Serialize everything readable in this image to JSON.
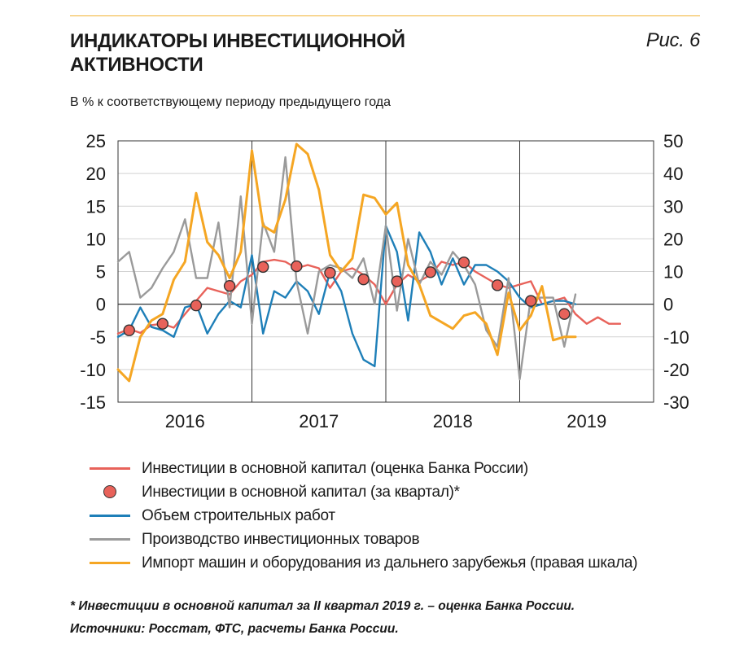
{
  "header": {
    "title": "ИНДИКАТОРЫ ИНВЕСТИЦИОННОЙ АКТИВНОСТИ",
    "figure_label": "Рис. 6",
    "subtitle": "В % к соответствующему периоду предыдущего года"
  },
  "chart_data": {
    "type": "line",
    "title": "ИНДИКАТОРЫ ИНВЕСТИЦИОННОЙ АКТИВНОСТИ",
    "subtitle": "В % к соответствующему периоду предыдущего года",
    "x_labels": [
      "2016",
      "2017",
      "2018",
      "2019"
    ],
    "xlim": [
      0,
      48
    ],
    "ylim_left": [
      -15,
      25
    ],
    "ylim_right": [
      -30,
      50
    ],
    "y_ticks_left": [
      25,
      20,
      15,
      10,
      5,
      0,
      -5,
      -10,
      -15
    ],
    "y_ticks_right": [
      50,
      40,
      30,
      20,
      10,
      0,
      -10,
      -20,
      -30
    ],
    "grid": "horizontal and year dividers",
    "legend_position": "bottom",
    "series": [
      {
        "name": "Инвестиции в основной капитал (оценка Банка России)",
        "axis": "left",
        "color": "#e8625a",
        "marker": "none",
        "x": [
          0,
          1,
          2,
          3,
          4,
          5,
          6,
          7,
          8,
          9,
          10,
          11,
          12,
          13,
          14,
          15,
          16,
          17,
          18,
          19,
          20,
          21,
          22,
          23,
          24,
          25,
          26,
          27,
          28,
          29,
          30,
          31,
          32,
          33,
          34,
          35,
          36,
          37,
          38,
          39,
          40,
          41,
          42,
          43,
          44,
          45
        ],
        "y": [
          -4.5,
          -3.8,
          -4.4,
          -3.2,
          -3.0,
          -3.6,
          -1.5,
          0.5,
          2.5,
          2.0,
          1.5,
          3.5,
          4.5,
          6.5,
          6.8,
          6.5,
          5.5,
          6.0,
          5.5,
          2.5,
          5.0,
          5.5,
          4.5,
          3.0,
          0.0,
          3.0,
          4.5,
          3.5,
          4.5,
          6.5,
          6.0,
          6.5,
          5.0,
          4.0,
          3.0,
          2.5,
          3.0,
          3.5,
          0.0,
          0.5,
          1.0,
          -1.5,
          -3.0,
          -2.0,
          -3.0,
          -3.0
        ]
      },
      {
        "name": "Инвестиции в основной капитал (за квартал)*",
        "axis": "left",
        "color": "#e8625a",
        "marker": "circle",
        "x": [
          1,
          4,
          7,
          10,
          13,
          16,
          19,
          22,
          25,
          28,
          31,
          34,
          37,
          40
        ],
        "y": [
          -4.0,
          -3.0,
          -0.2,
          2.8,
          5.7,
          5.8,
          4.8,
          3.8,
          3.5,
          4.9,
          6.4,
          2.9,
          0.5,
          -1.5
        ]
      },
      {
        "name": "Объем строительных работ",
        "axis": "left",
        "color": "#1e7fb8",
        "marker": "none",
        "x": [
          0,
          1,
          2,
          3,
          4,
          5,
          6,
          7,
          8,
          9,
          10,
          11,
          12,
          13,
          14,
          15,
          16,
          17,
          18,
          19,
          20,
          21,
          22,
          23,
          24,
          25,
          26,
          27,
          28,
          29,
          30,
          31,
          32,
          33,
          34,
          35,
          36,
          37,
          38,
          39,
          40,
          41
        ],
        "y": [
          -5.0,
          -4.0,
          -0.5,
          -3.5,
          -4.0,
          -5.0,
          -0.5,
          0.0,
          -4.5,
          -1.5,
          0.5,
          -0.5,
          7.5,
          -4.5,
          2.0,
          1.0,
          3.5,
          2.0,
          -1.5,
          5.0,
          2.0,
          -4.5,
          -8.5,
          -9.5,
          12.0,
          8.0,
          -2.5,
          11.0,
          8.0,
          3.0,
          7.0,
          3.0,
          6.0,
          6.0,
          5.0,
          3.5,
          1.0,
          -0.5,
          0.0,
          0.5,
          0.5,
          0.0
        ]
      },
      {
        "name": "Производство инвестиционных товаров",
        "axis": "left",
        "color": "#9a9a9a",
        "marker": "none",
        "x": [
          0,
          1,
          2,
          3,
          4,
          5,
          6,
          7,
          8,
          9,
          10,
          11,
          12,
          13,
          14,
          15,
          16,
          17,
          18,
          19,
          20,
          21,
          22,
          23,
          24,
          25,
          26,
          27,
          28,
          29,
          30,
          31,
          32,
          33,
          34,
          35,
          36,
          37,
          38,
          39,
          40,
          41
        ],
        "y": [
          6.5,
          8.0,
          1.0,
          2.5,
          5.5,
          8.0,
          13.0,
          4.0,
          4.0,
          12.5,
          -0.5,
          16.5,
          -3.0,
          12.5,
          8.0,
          22.5,
          3.5,
          -4.5,
          5.0,
          6.0,
          5.5,
          4.0,
          7.0,
          0.0,
          12.0,
          -1.0,
          10.0,
          3.0,
          6.5,
          4.5,
          8.0,
          6.0,
          3.0,
          -4.0,
          -6.5,
          4.0,
          -11.5,
          1.0,
          1.0,
          1.0,
          -6.5,
          1.5
        ]
      },
      {
        "name": "Импорт машин и оборудования из дальнего зарубежья (правая шкала)",
        "axis": "right",
        "color": "#f5a623",
        "marker": "none",
        "x": [
          0,
          1,
          2,
          3,
          4,
          5,
          6,
          7,
          8,
          9,
          10,
          11,
          12,
          13,
          14,
          15,
          16,
          17,
          18,
          19,
          20,
          21,
          22,
          23,
          24,
          25,
          26,
          27,
          28,
          29,
          30,
          31,
          32,
          33,
          34,
          35,
          36,
          37,
          38,
          39,
          40,
          41
        ],
        "y": [
          -20.0,
          -23.5,
          -10.0,
          -5.0,
          -3.0,
          7.5,
          13.0,
          34.0,
          19.0,
          15.0,
          8.0,
          16.0,
          47.0,
          24.0,
          22.0,
          32.0,
          49.0,
          46.0,
          35.0,
          15.0,
          10.0,
          14.0,
          33.5,
          32.5,
          27.5,
          31.0,
          12.0,
          6.0,
          -3.5,
          -5.5,
          -7.5,
          -3.5,
          -2.5,
          -6.0,
          -15.5,
          3.5,
          -8.0,
          -3.5,
          5.5,
          -11.0,
          -10.0,
          -10.0
        ]
      }
    ]
  },
  "legend": {
    "items": [
      "Инвестиции в основной капитал (оценка Банка России)",
      "Инвестиции в основной капитал (за квартал)*",
      "Объем строительных работ",
      "Производство инвестиционных товаров",
      "Импорт машин и оборудования из дальнего зарубежья (правая шкала)"
    ]
  },
  "footnotes": {
    "note": "* Инвестиции в основной капитал за II квартал 2019 г. – оценка Банка России.",
    "sources": "Источники: Росстат, ФТС, расчеты Банка России."
  },
  "colors": {
    "accent_line": "#f2b233",
    "red": "#e8625a",
    "blue": "#1e7fb8",
    "gray": "#9a9a9a",
    "orange": "#f5a623"
  }
}
